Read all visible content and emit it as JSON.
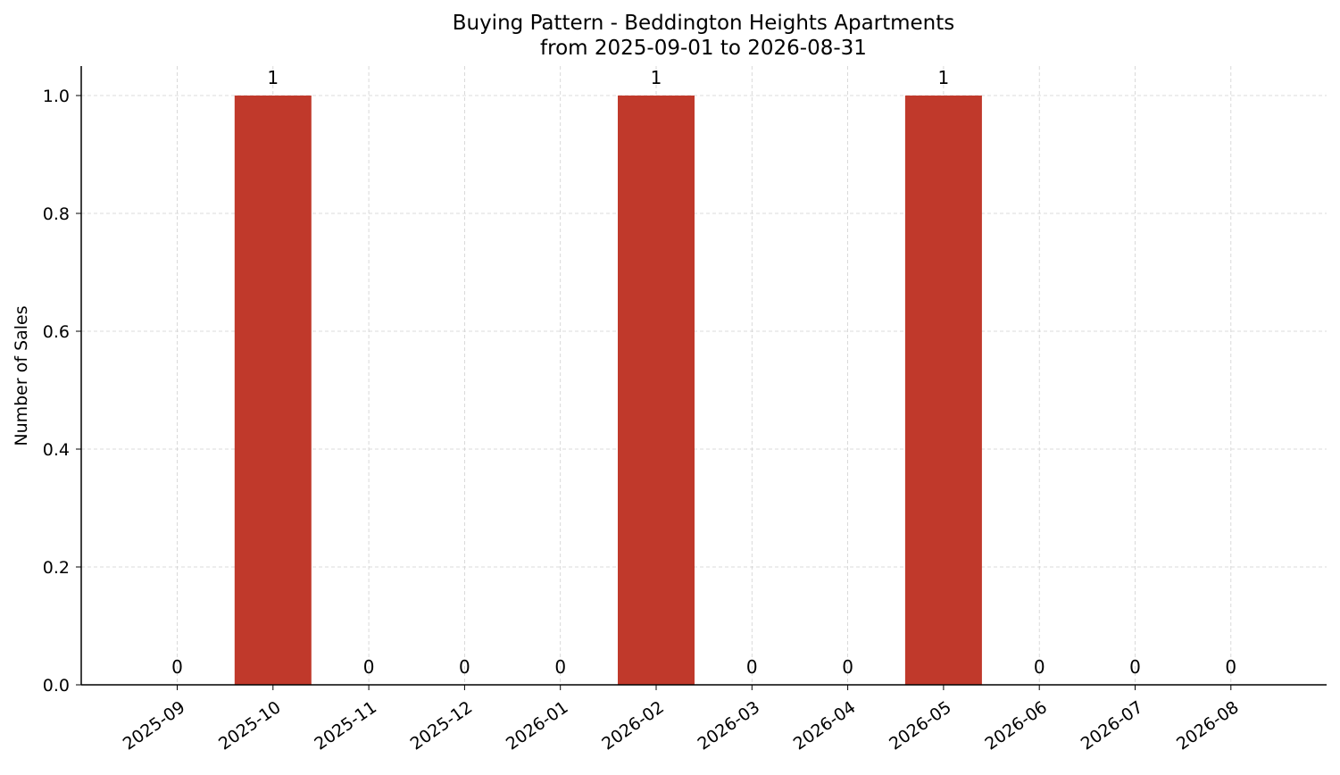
{
  "chart_data": {
    "type": "bar",
    "title": "Buying Pattern - Beddington Heights Apartments",
    "subtitle": "from 2025-09-01 to 2026-08-31",
    "xlabel": "",
    "ylabel": "Number of Sales",
    "categories": [
      "2025-09",
      "2025-10",
      "2025-11",
      "2025-12",
      "2026-01",
      "2026-02",
      "2026-03",
      "2026-04",
      "2026-05",
      "2026-06",
      "2026-07",
      "2026-08"
    ],
    "values": [
      0,
      1,
      0,
      0,
      0,
      1,
      0,
      0,
      1,
      0,
      0,
      0
    ],
    "data_labels": [
      "0",
      "1",
      "0",
      "0",
      "0",
      "1",
      "0",
      "0",
      "1",
      "0",
      "0",
      "0"
    ],
    "ylim": [
      0,
      1.05
    ],
    "yticks": [
      "0.0",
      "0.2",
      "0.4",
      "0.6",
      "0.8",
      "1.0"
    ],
    "grid": true,
    "bar_color": "#c0392b"
  }
}
